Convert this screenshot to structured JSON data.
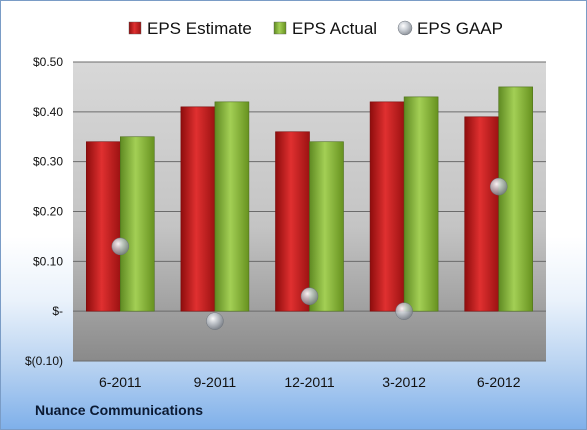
{
  "company": "Nuance Communications",
  "colors": {
    "estimate": "#cc1f1f",
    "actual": "#8dbb3a",
    "gaap": "#b9bec6"
  },
  "chart_data": {
    "type": "bar",
    "categories": [
      "6-2011",
      "9-2011",
      "12-2011",
      "3-2012",
      "6-2012"
    ],
    "series": [
      {
        "name": "EPS Estimate",
        "kind": "bar",
        "values": [
          0.34,
          0.41,
          0.36,
          0.42,
          0.39
        ]
      },
      {
        "name": "EPS Actual",
        "kind": "bar",
        "values": [
          0.35,
          0.42,
          0.34,
          0.43,
          0.45
        ]
      },
      {
        "name": "EPS GAAP",
        "kind": "marker",
        "values": [
          0.13,
          -0.02,
          0.03,
          0.0,
          0.25
        ]
      }
    ],
    "yticks": [
      {
        "value": 0.5,
        "label": "$0.50"
      },
      {
        "value": 0.4,
        "label": "$0.40"
      },
      {
        "value": 0.3,
        "label": "$0.30"
      },
      {
        "value": 0.2,
        "label": "$0.20"
      },
      {
        "value": 0.1,
        "label": "$0.10"
      },
      {
        "value": 0.0,
        "label": "$-"
      },
      {
        "value": -0.1,
        "label": "$(0.10)"
      }
    ],
    "ylim": [
      -0.1,
      0.5
    ],
    "legend_position": "top",
    "grid": true
  }
}
